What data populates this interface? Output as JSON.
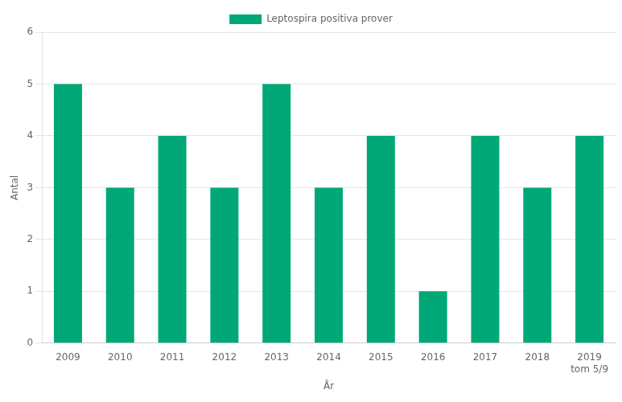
{
  "chart_data": {
    "type": "bar",
    "categories": [
      "2009",
      "2010",
      "2011",
      "2012",
      "2013",
      "2014",
      "2015",
      "2016",
      "2017",
      "2018",
      "2019\ntom 5/9"
    ],
    "series": [
      {
        "name": "Leptospira positiva prover",
        "color": "#00A878",
        "values": [
          5,
          3,
          4,
          3,
          5,
          3,
          4,
          1,
          4,
          3,
          4
        ]
      }
    ],
    "x_label": "År",
    "y_label": "Antal",
    "ylim": [
      0,
      6
    ],
    "yticks": [
      0,
      1,
      2,
      3,
      4,
      5,
      6
    ],
    "grid": true,
    "legend": "top"
  }
}
